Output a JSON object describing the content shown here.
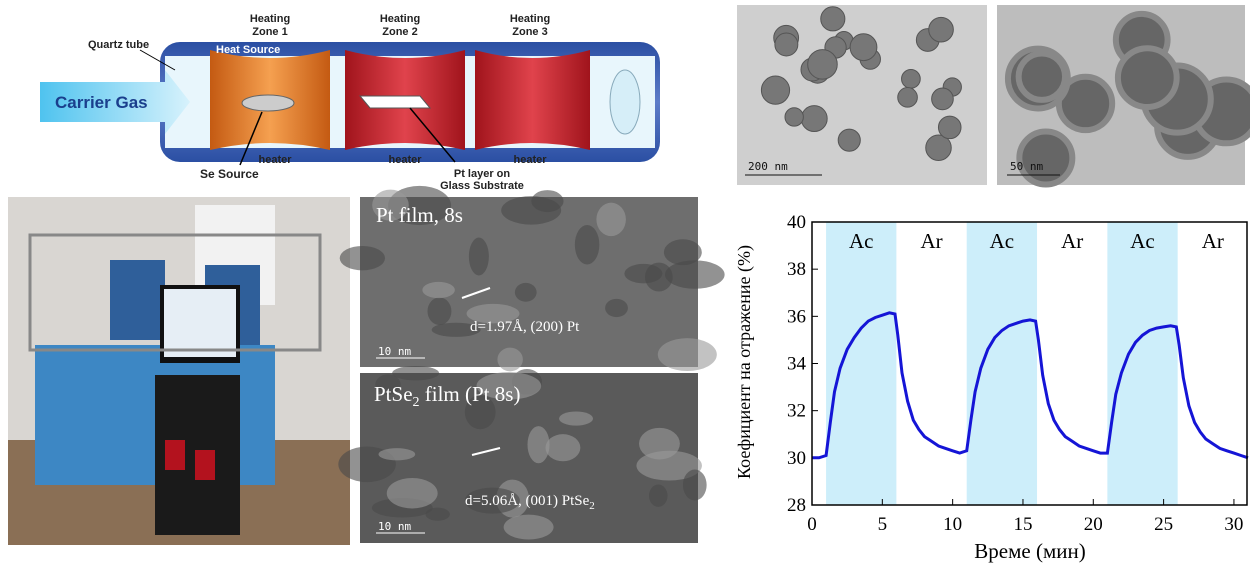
{
  "diagram": {
    "zones": [
      [
        "Heating",
        "Zone 1"
      ],
      [
        "Heating",
        "Zone 2"
      ],
      [
        "Heating",
        "Zone 3"
      ]
    ],
    "quartz": "Quartz tube",
    "heat_source": "Heat Source",
    "carrier_gas": "Carrier Gas",
    "heaters": [
      "heater",
      "heater",
      "heater"
    ],
    "se_source": "Se Source",
    "pt_layer": [
      "Pt layer on",
      "Glass Substrate"
    ]
  },
  "tem_left": {
    "top": {
      "title": "Pt film, 8s",
      "spacing": "d=1.97Å, (200) Pt",
      "scale": "10 nm"
    },
    "bottom": {
      "title": [
        "PtSe",
        "2",
        " film (Pt 8s)"
      ],
      "spacing": [
        "d=5.06Å, (001) PtSe",
        "2"
      ],
      "scale": "10 nm"
    }
  },
  "tem_right": {
    "left_scale": "200 nm",
    "right_scale": "50 nm"
  },
  "chart_data": {
    "type": "line",
    "xlabel": "Време (мин)",
    "ylabel": "Коефициент на отражение (%)",
    "color": "#1515d6",
    "xlim": [
      0,
      31
    ],
    "xticks": [
      0,
      5,
      10,
      15,
      20,
      25,
      30
    ],
    "ylim": [
      28,
      40
    ],
    "yticks": [
      28,
      30,
      32,
      34,
      36,
      38,
      40
    ],
    "region_color": "#cdeefa",
    "regions": [
      {
        "x0": 1,
        "x1": 6,
        "label": "Ac",
        "shaded": true
      },
      {
        "x0": 6,
        "x1": 11,
        "label": "Ar",
        "shaded": false
      },
      {
        "x0": 11,
        "x1": 16,
        "label": "Ac",
        "shaded": true
      },
      {
        "x0": 16,
        "x1": 21,
        "label": "Ar",
        "shaded": false
      },
      {
        "x0": 21,
        "x1": 26,
        "label": "Ac",
        "shaded": true
      },
      {
        "x0": 26,
        "x1": 31,
        "label": "Ar",
        "shaded": false
      }
    ],
    "x": [
      0,
      0.5,
      1,
      1.3,
      1.6,
      2,
      2.5,
      3,
      3.5,
      4,
      4.5,
      5,
      5.5,
      5.9,
      6.1,
      6.4,
      6.8,
      7.2,
      7.6,
      8,
      8.5,
      9,
      9.5,
      10,
      10.5,
      11,
      11.3,
      11.6,
      12,
      12.5,
      13,
      13.5,
      14,
      14.5,
      15,
      15.5,
      15.9,
      16.1,
      16.4,
      16.8,
      17.2,
      17.6,
      18,
      18.5,
      19,
      19.5,
      20,
      20.5,
      21,
      21.3,
      21.6,
      22,
      22.5,
      23,
      23.5,
      24,
      24.5,
      25,
      25.5,
      25.9,
      26.1,
      26.4,
      26.8,
      27.2,
      27.6,
      28,
      28.5,
      29,
      29.5,
      30,
      30.5,
      31
    ],
    "values": [
      30.0,
      30.0,
      30.1,
      31.5,
      32.8,
      33.8,
      34.6,
      35.1,
      35.5,
      35.8,
      35.95,
      36.05,
      36.15,
      36.1,
      35.2,
      33.6,
      32.4,
      31.6,
      31.2,
      30.9,
      30.7,
      30.5,
      30.4,
      30.3,
      30.2,
      30.3,
      31.6,
      32.8,
      33.8,
      34.6,
      35.1,
      35.4,
      35.6,
      35.7,
      35.8,
      35.85,
      35.8,
      35.0,
      33.5,
      32.3,
      31.6,
      31.2,
      30.9,
      30.7,
      30.5,
      30.4,
      30.3,
      30.2,
      30.2,
      31.5,
      32.7,
      33.6,
      34.4,
      34.9,
      35.2,
      35.4,
      35.5,
      35.55,
      35.6,
      35.55,
      34.8,
      33.4,
      32.2,
      31.5,
      31.1,
      30.8,
      30.6,
      30.4,
      30.3,
      30.2,
      30.1,
      30.0
    ]
  }
}
